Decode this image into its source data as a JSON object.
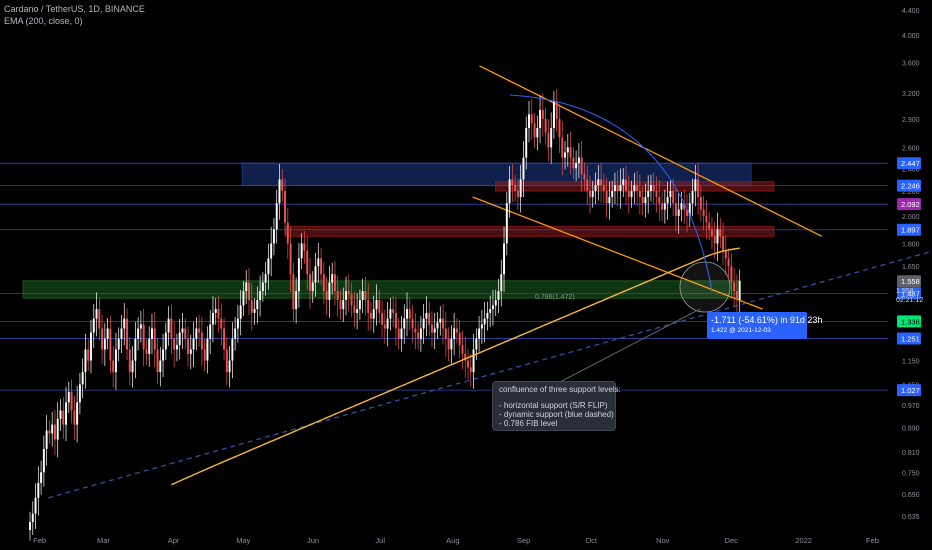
{
  "header": {
    "symbol_line": "Cardano / TetherUS, 1D, BINANCE",
    "indicator_line": "EMA (200, close, 0)"
  },
  "colors": {
    "background": "#000000",
    "candle_down": "#ef5350",
    "candle_up": "#ffffff",
    "ema": "#f7b731",
    "trendline": "#ff9800",
    "arc": "#2962ff",
    "dashed_support": "#2f4fa0",
    "hline": "#3547a8",
    "zone_blue": "#1e3a8a",
    "zone_red": "#8b1a1a",
    "zone_green": "#1b5e20"
  },
  "countdown": {
    "price": "1.558",
    "timer": "02:21:12"
  },
  "callout": {
    "title": "confluence of three support levels:",
    "lines": [
      "- horizontal support (S/R FLIP)",
      "- dynamic support (blue dashed)",
      "- 0.786 FIB level"
    ]
  },
  "measure": {
    "main": "-1.711 (-54.61%) in 91d 23h",
    "sub": "1.422 @ 2021-12-03"
  },
  "fib_label": "0.786(1.472)",
  "chart_data": {
    "type": "candlestick",
    "title": "Cardano / TetherUS, 1D, BINANCE",
    "y_scale": "log",
    "ylim": [
      0.62,
      4.5
    ],
    "x_tick_labels": [
      "Feb",
      "Mar",
      "Apr",
      "May",
      "Jun",
      "Jul",
      "Aug",
      "Sep",
      "Oct",
      "Nov",
      "Dec",
      "2022",
      "Feb"
    ],
    "y_tick_labels": [
      "0.635",
      "0.690",
      "0.750",
      "0.810",
      "0.890",
      "0.970",
      "1.050",
      "1.150",
      "1.250",
      "1.350",
      "1.500",
      "1.650",
      "1.800",
      "2.000",
      "2.200",
      "2.400",
      "2.600",
      "2.900",
      "3.200",
      "3.600",
      "4.000",
      "4.400"
    ],
    "price_badges": [
      {
        "value": "2.447",
        "color": "#2962ff"
      },
      {
        "value": "2.246",
        "color": "#2962ff"
      },
      {
        "value": "2.092",
        "color": "#9c27b0"
      },
      {
        "value": "1.897",
        "color": "#2962ff"
      },
      {
        "value": "1.558",
        "color": "#5d606b"
      },
      {
        "value": "1.487",
        "color": "#2962ff"
      },
      {
        "value": "1.336",
        "color": "#00e676"
      },
      {
        "value": "1.251",
        "color": "#2962ff"
      },
      {
        "value": "1.027",
        "color": "#2962ff"
      }
    ],
    "horizontal_levels": [
      2.447,
      2.246,
      2.092,
      1.897,
      1.487,
      1.336,
      1.251,
      1.027
    ],
    "zones": [
      {
        "name": "blue supply zone",
        "color": "#1e3a8a",
        "low": 2.246,
        "high": 2.447,
        "from": "2021-05-01",
        "to": "2021-12-10"
      },
      {
        "name": "red zone upper",
        "color": "#8b1a1a",
        "low": 2.2,
        "high": 2.28,
        "from": "2021-08-20",
        "to": "2021-12-20"
      },
      {
        "name": "red zone lower",
        "color": "#8b1a1a",
        "low": 1.85,
        "high": 1.92,
        "from": "2021-05-20",
        "to": "2021-12-20"
      },
      {
        "name": "green demand zone",
        "color": "#1b5e20",
        "low": 1.46,
        "high": 1.56,
        "from": "2021-01-25",
        "to": "2021-12-05"
      }
    ],
    "ohlc_daily_close": [
      0.62,
      0.64,
      0.68,
      0.72,
      0.75,
      0.82,
      0.88,
      0.87,
      0.9,
      0.85,
      0.92,
      0.95,
      0.9,
      0.98,
      1.02,
      0.95,
      0.9,
      0.98,
      1.05,
      1.1,
      1.2,
      1.15,
      1.28,
      1.35,
      1.4,
      1.3,
      1.2,
      1.25,
      1.3,
      1.15,
      1.1,
      1.2,
      1.25,
      1.3,
      1.35,
      1.2,
      1.1,
      1.15,
      1.25,
      1.3,
      1.32,
      1.2,
      1.18,
      1.25,
      1.3,
      1.2,
      1.1,
      1.15,
      1.2,
      1.28,
      1.35,
      1.25,
      1.2,
      1.22,
      1.28,
      1.3,
      1.25,
      1.18,
      1.2,
      1.25,
      1.3,
      1.28,
      1.2,
      1.15,
      1.25,
      1.32,
      1.38,
      1.4,
      1.35,
      1.3,
      1.2,
      1.1,
      1.15,
      1.25,
      1.3,
      1.35,
      1.42,
      1.5,
      1.55,
      1.45,
      1.38,
      1.4,
      1.45,
      1.5,
      1.55,
      1.6,
      1.7,
      1.8,
      1.9,
      2.1,
      2.3,
      2.2,
      1.95,
      1.8,
      1.6,
      1.4,
      1.5,
      1.7,
      1.8,
      1.75,
      1.6,
      1.5,
      1.55,
      1.65,
      1.7,
      1.6,
      1.5,
      1.45,
      1.55,
      1.6,
      1.5,
      1.45,
      1.4,
      1.45,
      1.5,
      1.48,
      1.42,
      1.38,
      1.4,
      1.45,
      1.5,
      1.45,
      1.38,
      1.35,
      1.4,
      1.45,
      1.38,
      1.32,
      1.3,
      1.35,
      1.4,
      1.38,
      1.3,
      1.25,
      1.3,
      1.35,
      1.4,
      1.35,
      1.3,
      1.28,
      1.25,
      1.3,
      1.35,
      1.38,
      1.32,
      1.28,
      1.3,
      1.33,
      1.35,
      1.3,
      1.25,
      1.2,
      1.25,
      1.3,
      1.28,
      1.22,
      1.18,
      1.15,
      1.12,
      1.1,
      1.2,
      1.25,
      1.3,
      1.32,
      1.35,
      1.38,
      1.4,
      1.42,
      1.45,
      1.5,
      1.6,
      1.8,
      2.1,
      2.3,
      2.25,
      2.2,
      2.15,
      2.3,
      2.5,
      2.8,
      2.95,
      2.85,
      2.7,
      2.8,
      3.0,
      2.9,
      2.75,
      2.6,
      2.8,
      3.1,
      2.9,
      2.7,
      2.5,
      2.55,
      2.6,
      2.5,
      2.4,
      2.45,
      2.5,
      2.35,
      2.3,
      2.2,
      2.15,
      2.2,
      2.25,
      2.3,
      2.25,
      2.2,
      2.1,
      2.15,
      2.2,
      2.25,
      2.2,
      2.25,
      2.3,
      2.2,
      2.15,
      2.2,
      2.25,
      2.2,
      2.15,
      2.1,
      2.15,
      2.2,
      2.25,
      2.2,
      2.15,
      2.1,
      2.05,
      2.1,
      2.15,
      2.2,
      2.1,
      2.0,
      2.05,
      2.1,
      2.05,
      2.0,
      2.1,
      2.2,
      2.3,
      2.15,
      2.05,
      2.0,
      1.95,
      1.9,
      1.85,
      1.8,
      1.9,
      1.85,
      1.75,
      1.7,
      1.65,
      1.55,
      1.5,
      1.45,
      1.56
    ],
    "ema200_desc": "EMA 200 rising from ~0.60 (Feb) to ~1.80 (Dec)",
    "trendlines": [
      {
        "name": "upper descending resistance",
        "color": "#ff9800",
        "from": [
          "2021-08-13",
          3.55
        ],
        "to": [
          "2022-01-10",
          1.85
        ]
      },
      {
        "name": "lower descending support",
        "color": "#ff9800",
        "from": [
          "2021-08-10",
          2.15
        ],
        "to": [
          "2021-12-15",
          1.4
        ]
      },
      {
        "name": "rising dynamic support",
        "color": "#2f4fa0",
        "style": "dashed",
        "from": [
          "2021-02-05",
          0.68
        ],
        "to": [
          "2022-02-28",
          1.75
        ]
      }
    ]
  }
}
